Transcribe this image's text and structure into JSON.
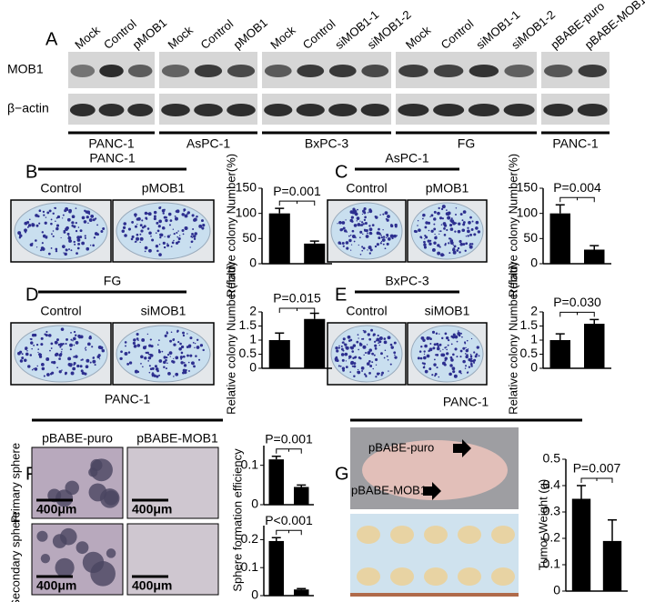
{
  "panel_labels": [
    "A",
    "B",
    "C",
    "D",
    "E",
    "F",
    "G"
  ],
  "blot": {
    "row_labels": [
      "MOB1",
      "β−actin"
    ],
    "groups": [
      {
        "lanes": [
          "Mock",
          "Control",
          "pMOB1"
        ],
        "cell_line": "PANC-1"
      },
      {
        "lanes": [
          "Mock",
          "Control",
          "pMOB1"
        ],
        "cell_line": "AsPC-1"
      },
      {
        "lanes": [
          "Mock",
          "Control",
          "siMOB1-1",
          "siMOB1-2"
        ],
        "cell_line": "BxPC-3"
      },
      {
        "lanes": [
          "Mock",
          "Control",
          "siMOB1-1",
          "siMOB1-2"
        ],
        "cell_line": "FG"
      },
      {
        "lanes": [
          "pBABE-puro",
          "pBABE-MOB1"
        ],
        "cell_line": "PANC-1"
      }
    ]
  },
  "colony_images": [
    {
      "cell_line": "PANC-1",
      "labels": [
        "Control",
        "pMOB1"
      ]
    },
    {
      "cell_line": "AsPC-1",
      "labels": [
        "Control",
        "pMOB1"
      ]
    },
    {
      "cell_line": "FG",
      "labels": [
        "Control",
        "siMOB1"
      ]
    },
    {
      "cell_line": "BxPC-3",
      "labels": [
        "Control",
        "siMOB1"
      ]
    }
  ],
  "sphere_images": {
    "cell_line": "PANC-1",
    "columns": [
      "pBABE-puro",
      "pBABE-MOB1"
    ],
    "rows": [
      "Primary sphere",
      "Secondary sphere"
    ],
    "scale_bar": "400μm"
  },
  "xenograft": {
    "cell_line": "PANC-1",
    "arrows": [
      "pBABE-puro",
      "pBABE-MOB1"
    ]
  },
  "chart_data": [
    {
      "type": "bar",
      "ylabel": "Relative colony Number(%)",
      "annotation": "P=0.001",
      "values": [
        100,
        40
      ],
      "errors": [
        10,
        5
      ],
      "ylim": [
        0,
        150
      ],
      "yticks": [
        0,
        50,
        100,
        150
      ],
      "color": "#000000"
    },
    {
      "type": "bar",
      "ylabel": "Relative colony Number(%)",
      "annotation": "P=0.004",
      "values": [
        100,
        28
      ],
      "errors": [
        17,
        8
      ],
      "ylim": [
        0,
        150
      ],
      "yticks": [
        0,
        50,
        100,
        150
      ],
      "color": "#000000"
    },
    {
      "type": "bar",
      "ylabel": "Relative colony Number(fold)",
      "annotation": "P=0.015",
      "values": [
        1.0,
        1.75
      ],
      "errors": [
        0.25,
        0.2
      ],
      "ylim": [
        0,
        2
      ],
      "yticks": [
        0,
        0.5,
        1,
        1.5,
        2
      ],
      "color": "#000000"
    },
    {
      "type": "bar",
      "ylabel": "Relative colony Number(fold)",
      "annotation": "P=0.030",
      "values": [
        1.0,
        1.58
      ],
      "errors": [
        0.22,
        0.15
      ],
      "ylim": [
        0,
        2
      ],
      "yticks": [
        0,
        0.5,
        1,
        1.5,
        2
      ],
      "color": "#000000"
    },
    {
      "type": "bar",
      "ylabel": "Sphere formation efficiency",
      "annotation": "P=0.001",
      "values": [
        0.115,
        0.045
      ],
      "errors": [
        0.008,
        0.005
      ],
      "ylim": [
        0,
        0.15
      ],
      "yticks": [
        0,
        0.1
      ],
      "color": "#000000"
    },
    {
      "type": "bar",
      "annotation": "P<0.001",
      "values": [
        0.195,
        0.022
      ],
      "errors": [
        0.012,
        0.003
      ],
      "ylim": [
        0,
        0.25
      ],
      "yticks": [
        0,
        0.1,
        0.2
      ],
      "color": "#000000"
    },
    {
      "type": "bar",
      "ylabel": "Tumor Weight (g)",
      "annotation": "P=0.007",
      "values": [
        0.35,
        0.19
      ],
      "errors": [
        0.05,
        0.08
      ],
      "ylim": [
        0,
        0.5
      ],
      "yticks": [
        0,
        0.1,
        0.2,
        0.3,
        0.4,
        0.5
      ],
      "color": "#000000"
    }
  ]
}
